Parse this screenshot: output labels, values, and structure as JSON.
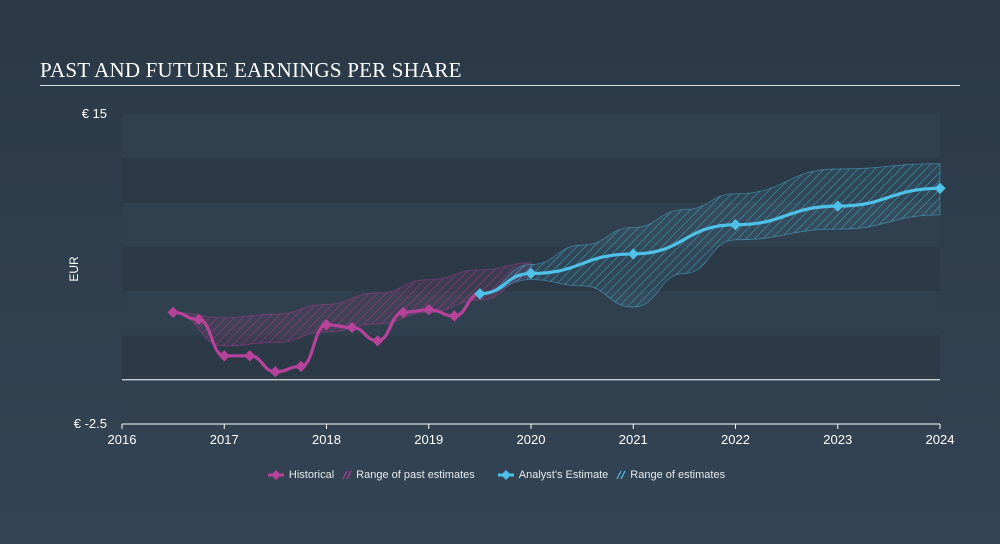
{
  "title": "PAST AND FUTURE EARNINGS PER SHARE",
  "legend": {
    "historical": "Historical",
    "past_range": "Range of past estimates",
    "analyst": "Analyst's Estimate",
    "future_range": "Range of estimates"
  },
  "colors": {
    "historical": "#b6429a",
    "estimate": "#4fc0e8",
    "background": "#2b3947"
  },
  "chart_data": {
    "type": "line",
    "title": "PAST AND FUTURE EARNINGS PER SHARE",
    "ylabel": "EUR",
    "ylim": [
      -2.5,
      15
    ],
    "xlim": [
      2016,
      2024
    ],
    "y_tick_labels": [
      "€ 15",
      "€ -2.5"
    ],
    "x_tick_labels": [
      "2016",
      "2017",
      "2018",
      "2019",
      "2020",
      "2021",
      "2022",
      "2023",
      "2024"
    ],
    "zero_line": 0,
    "series": [
      {
        "name": "Historical",
        "x": [
          2016.5,
          2016.75,
          2017.0,
          2017.25,
          2017.5,
          2017.75,
          2018.0,
          2018.25,
          2018.5,
          2018.75,
          2019.0,
          2019.25,
          2019.5
        ],
        "values": [
          3.8,
          3.4,
          1.35,
          1.35,
          0.45,
          0.75,
          3.1,
          2.95,
          2.2,
          3.8,
          3.95,
          3.6,
          4.85
        ]
      },
      {
        "name": "Analyst's Estimate",
        "x": [
          2019.5,
          2020.0,
          2021.0,
          2022.0,
          2023.0,
          2024.0
        ],
        "values": [
          4.85,
          6.0,
          7.1,
          8.75,
          9.8,
          10.8
        ]
      }
    ],
    "ranges": [
      {
        "name": "Range of past estimates",
        "x": [
          2016.5,
          2017.0,
          2017.5,
          2018.0,
          2018.5,
          2019.0,
          2019.5,
          2020.0
        ],
        "upper": [
          3.8,
          3.5,
          3.7,
          4.25,
          4.9,
          5.65,
          6.2,
          6.6
        ],
        "lower": [
          3.8,
          1.9,
          2.1,
          2.7,
          3.15,
          3.8,
          4.5,
          5.8
        ]
      },
      {
        "name": "Range of estimates",
        "x": [
          2019.5,
          2020.0,
          2020.5,
          2021.0,
          2021.5,
          2022.0,
          2023.0,
          2024.0
        ],
        "upper": [
          4.85,
          6.5,
          7.6,
          8.6,
          9.6,
          10.5,
          11.9,
          12.2
        ],
        "lower": [
          4.85,
          5.65,
          5.3,
          4.1,
          6.0,
          7.9,
          8.5,
          9.3
        ]
      }
    ]
  }
}
